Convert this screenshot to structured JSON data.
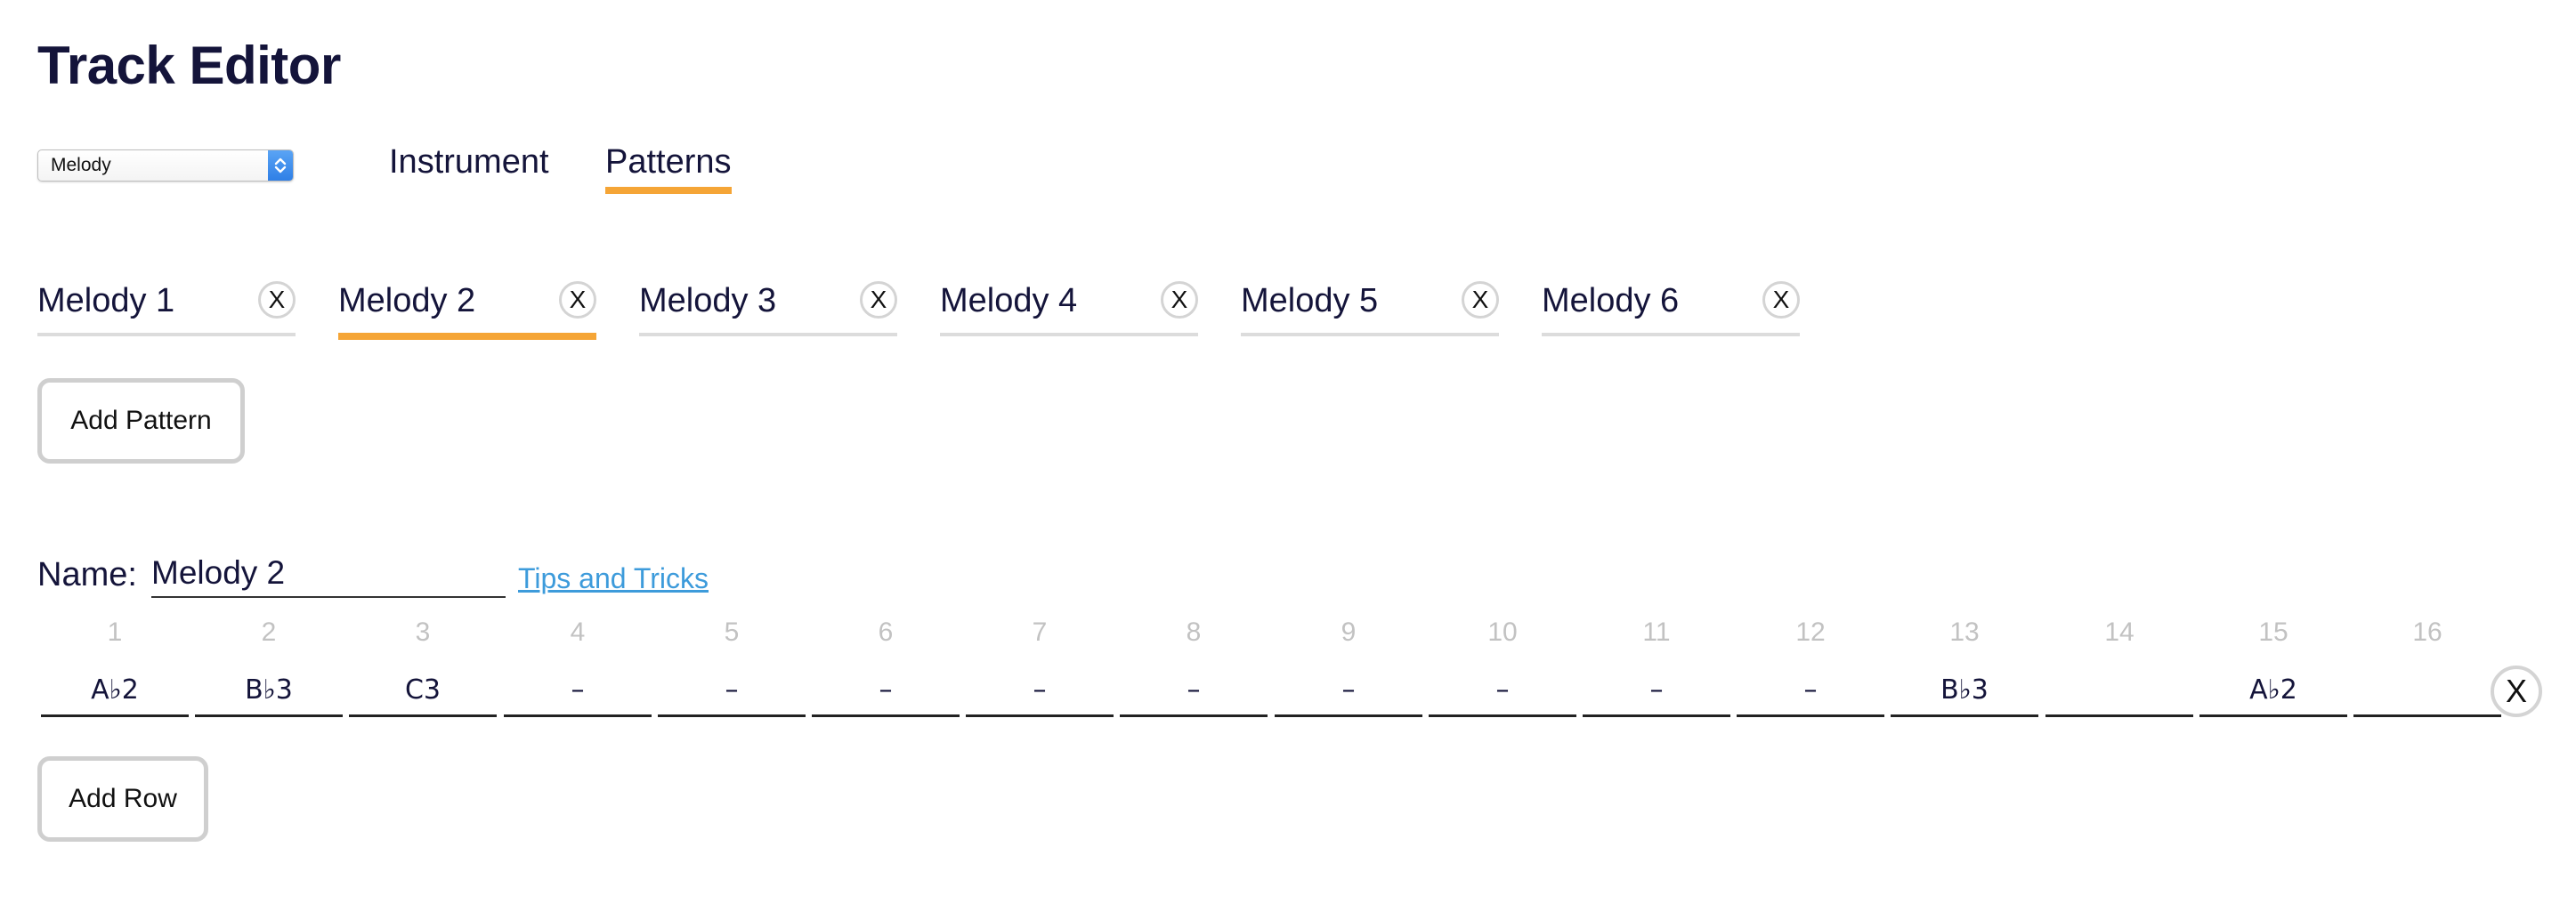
{
  "header": {
    "title": "Track Editor"
  },
  "track_select": {
    "selected": "Melody",
    "arrows_icon": "select-arrows-icon",
    "accent": "#3b8beb"
  },
  "mode_tabs": {
    "instrument": "Instrument",
    "patterns": "Patterns",
    "active": "Patterns",
    "active_color": "#f5a536"
  },
  "pattern_tabs": [
    {
      "label": "Melody 1",
      "close": "X"
    },
    {
      "label": "Melody 2",
      "close": "X",
      "active": true
    },
    {
      "label": "Melody 3",
      "close": "X"
    },
    {
      "label": "Melody 4",
      "close": "X"
    },
    {
      "label": "Melody 5",
      "close": "X"
    },
    {
      "label": "Melody 6",
      "close": "X"
    }
  ],
  "add_pattern_label": "Add Pattern",
  "editor": {
    "name_label": "Name:",
    "name_value": "Melody 2",
    "tips_link": "Tips and Tricks",
    "link_color": "#3d9bdb"
  },
  "steps": {
    "numbers": [
      "1",
      "2",
      "3",
      "4",
      "5",
      "6",
      "7",
      "8",
      "9",
      "10",
      "11",
      "12",
      "13",
      "14",
      "15",
      "16"
    ],
    "values": [
      "A♭2",
      "B♭3",
      "C3",
      "–",
      "–",
      "–",
      "–",
      "–",
      "–",
      "–",
      "–",
      "–",
      "B♭3",
      "",
      "A♭2",
      ""
    ],
    "row_close": "X"
  },
  "add_row_label": "Add Row"
}
